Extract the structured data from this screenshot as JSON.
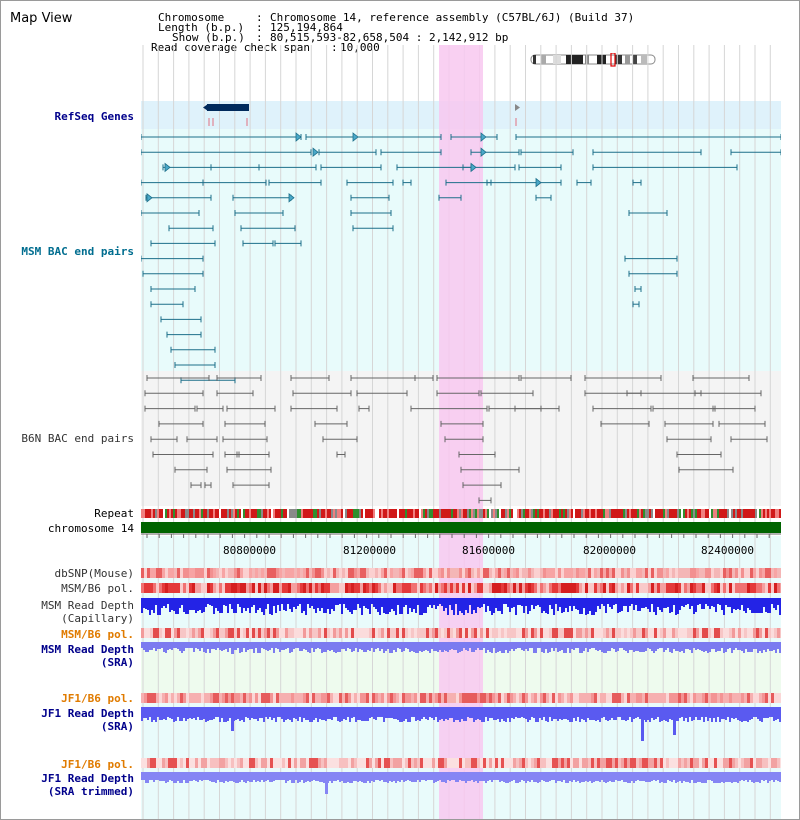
{
  "window": {
    "title": "Map View"
  },
  "header": {
    "chromosome_label": "Chromosome",
    "chromosome_value": "Chromosome 14, reference assembly (C57BL/6J) (Build 37)",
    "length_label": "Length (b.p.)",
    "length_value": "125,194,864",
    "show_label": "Show (b.p.)",
    "show_value": "80,515,593-82,658,504 : 2,142,912 bp",
    "coverage_label": "Read coverage check span",
    "coverage_value": "10,000"
  },
  "tracks": {
    "refseq": "RefSeq Genes",
    "msm_bac": "MSM BAC end pairs",
    "b6n_bac": "B6N BAC end pairs",
    "repeat": "Repeat",
    "chromosome": "chromosome 14",
    "dbsnp": "dbSNP(Mouse)",
    "msm_b6_pol_1": "MSM/B6 pol.",
    "msm_read_depth_cap_1": "MSM Read Depth",
    "msm_read_depth_cap_2": "(Capillary)",
    "msm_b6_pol_2": "MSM/B6 pol.",
    "msm_read_depth_sra_1": "MSM Read Depth",
    "msm_read_depth_sra_2": "(SRA)",
    "jf1_b6_pol_1": "JF1/B6 pol.",
    "jf1_read_depth_sra_1": "JF1 Read Depth",
    "jf1_read_depth_sra_2": "(SRA)",
    "jf1_b6_pol_2": "JF1/B6 pol.",
    "jf1_read_depth_trim_1": "JF1 Read Depth",
    "jf1_read_depth_trim_2": "(SRA trimmed)"
  },
  "axis": {
    "tick_labels": [
      "80800000",
      "81200000",
      "81600000",
      "82000000",
      "82400000"
    ]
  },
  "colors": {
    "refseq_bg": "#dff2fb",
    "msm_bg": "#e8fbfb",
    "b6n_bg": "#f4f4f4",
    "highlight": "#f8c8f0",
    "feature_teal": "#1d6f8a",
    "feature_gray": "#666666",
    "chromosome_bar": "#006400",
    "gene_dark": "#002a5c"
  }
}
